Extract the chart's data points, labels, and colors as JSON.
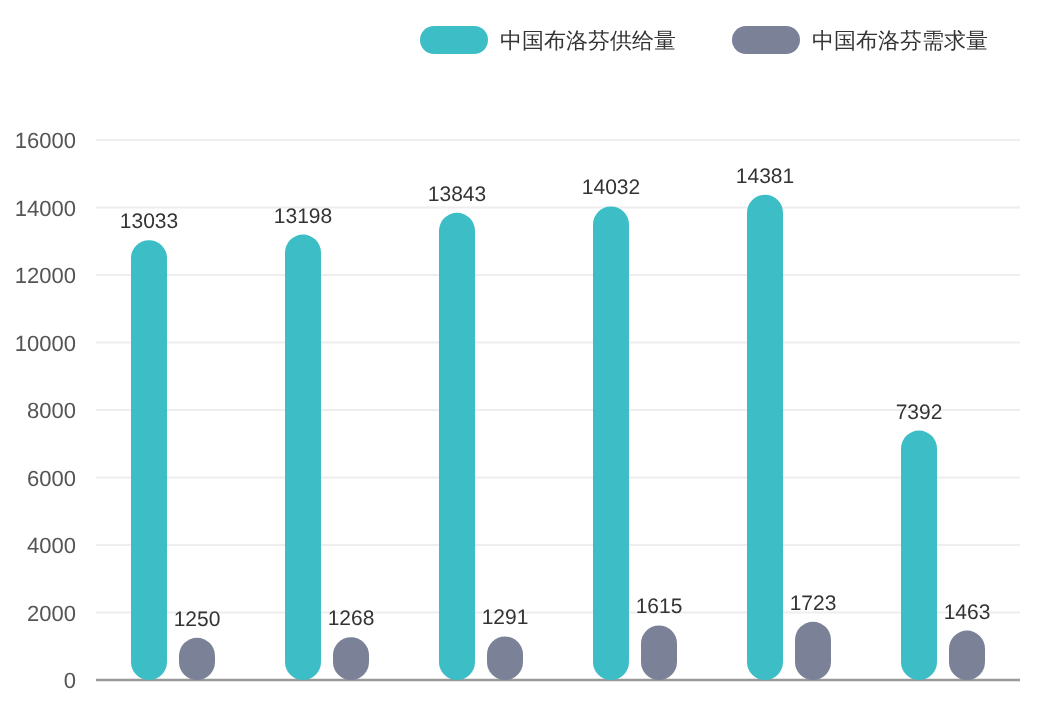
{
  "chart_data": {
    "type": "bar",
    "categories": [
      null,
      null,
      null,
      null,
      null,
      null
    ],
    "series": [
      {
        "name": "中国布洛芬供给量",
        "color": "#3dbdc6",
        "values": [
          13033,
          13198,
          13843,
          14032,
          14381,
          7392
        ]
      },
      {
        "name": "中国布洛芬需求量",
        "color": "#7b8298",
        "values": [
          1250,
          1268,
          1291,
          1615,
          1723,
          1463
        ]
      }
    ],
    "ylim": [
      0,
      16000
    ],
    "yticks": [
      0,
      2000,
      4000,
      6000,
      8000,
      10000,
      12000,
      14000,
      16000
    ],
    "grid": "y",
    "legend": "top right",
    "data_labels": true
  }
}
